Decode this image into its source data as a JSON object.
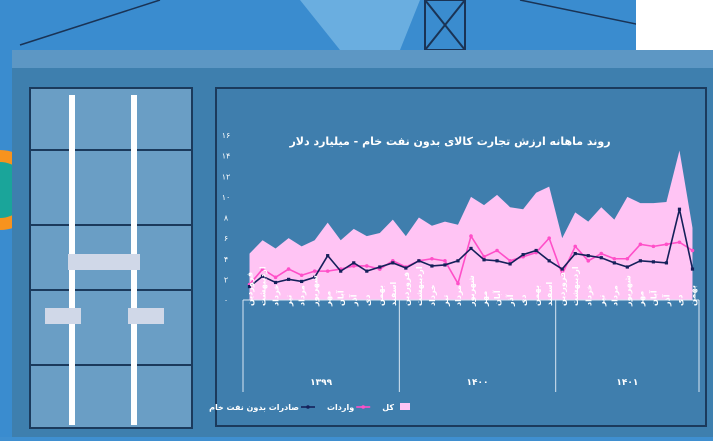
{
  "chart_data": {
    "type": "line",
    "title": "روند ماهانه ارزش تجارت کالای بدون نفت خام - میلیارد دلار",
    "categories": [
      "فروردین",
      "اردیبهشت",
      "خرداد",
      "تیر",
      "مرداد",
      "شهریور",
      "مهر",
      "آبان",
      "آذر",
      "دی",
      "بهمن",
      "اسفند",
      "فروردین",
      "اردیبهشت",
      "خرداد",
      "تیر",
      "مرداد",
      "شهریور",
      "مهر",
      "آبان",
      "آذر",
      "دی",
      "بهمن",
      "اسفند",
      "فروردین",
      "اردیبهشت",
      "خرداد",
      "تیر",
      "مرداد",
      "شهریور",
      "مهر",
      "آبان",
      "آذر",
      "دی",
      "بهمن"
    ],
    "year_labels": [
      "۱۳۹۹",
      "۱۴۰۰",
      "۱۴۰۱"
    ],
    "ylim": [
      0,
      16
    ],
    "yticks": [
      {
        "value": 0,
        "label": "۰"
      },
      {
        "value": 2,
        "label": "۲"
      },
      {
        "value": 4,
        "label": "۴"
      },
      {
        "value": 6,
        "label": "۶"
      },
      {
        "value": 8,
        "label": "۸"
      },
      {
        "value": 10,
        "label": "۱۰"
      },
      {
        "value": 12,
        "label": "۱۲"
      },
      {
        "value": 14,
        "label": "۱۴"
      },
      {
        "value": 16,
        "label": "۱۶"
      }
    ],
    "series": [
      {
        "name": "کل",
        "kind": "area",
        "color": "#ffc4f4",
        "values": [
          4.5,
          5.8,
          5.0,
          6.0,
          5.2,
          5.8,
          7.5,
          5.8,
          6.9,
          6.2,
          6.5,
          7.8,
          6.2,
          8.0,
          7.2,
          7.6,
          7.3,
          10.0,
          9.2,
          10.2,
          9.0,
          8.8,
          10.4,
          11.0,
          6.0,
          8.5,
          7.6,
          9.0,
          7.8,
          10.0,
          9.4,
          9.4,
          9.5,
          14.5,
          7.0
        ]
      },
      {
        "name": "واردات",
        "kind": "line",
        "color": "#ff4fc8",
        "values": [
          1.5,
          3.0,
          2.2,
          3.0,
          2.4,
          2.8,
          2.8,
          3.0,
          3.3,
          3.3,
          3.0,
          3.8,
          3.2,
          3.8,
          4.0,
          3.8,
          1.6,
          6.2,
          4.2,
          4.8,
          3.8,
          4.2,
          4.6,
          6.0,
          2.5,
          5.2,
          3.8,
          4.5,
          4.0,
          4.0,
          5.4,
          5.2,
          5.4,
          5.6,
          4.8
        ]
      },
      {
        "name": "صادرات بدون نفت خام",
        "kind": "line",
        "color": "#14205a",
        "values": [
          1.3,
          2.3,
          1.7,
          2.0,
          1.8,
          2.2,
          4.3,
          2.8,
          3.6,
          2.8,
          3.2,
          3.6,
          3.1,
          3.8,
          3.3,
          3.4,
          3.8,
          5.0,
          3.9,
          3.8,
          3.5,
          4.4,
          4.8,
          3.8,
          3.0,
          4.5,
          4.3,
          4.1,
          3.6,
          3.2,
          3.8,
          3.7,
          3.6,
          8.8,
          3.0
        ]
      }
    ]
  }
}
